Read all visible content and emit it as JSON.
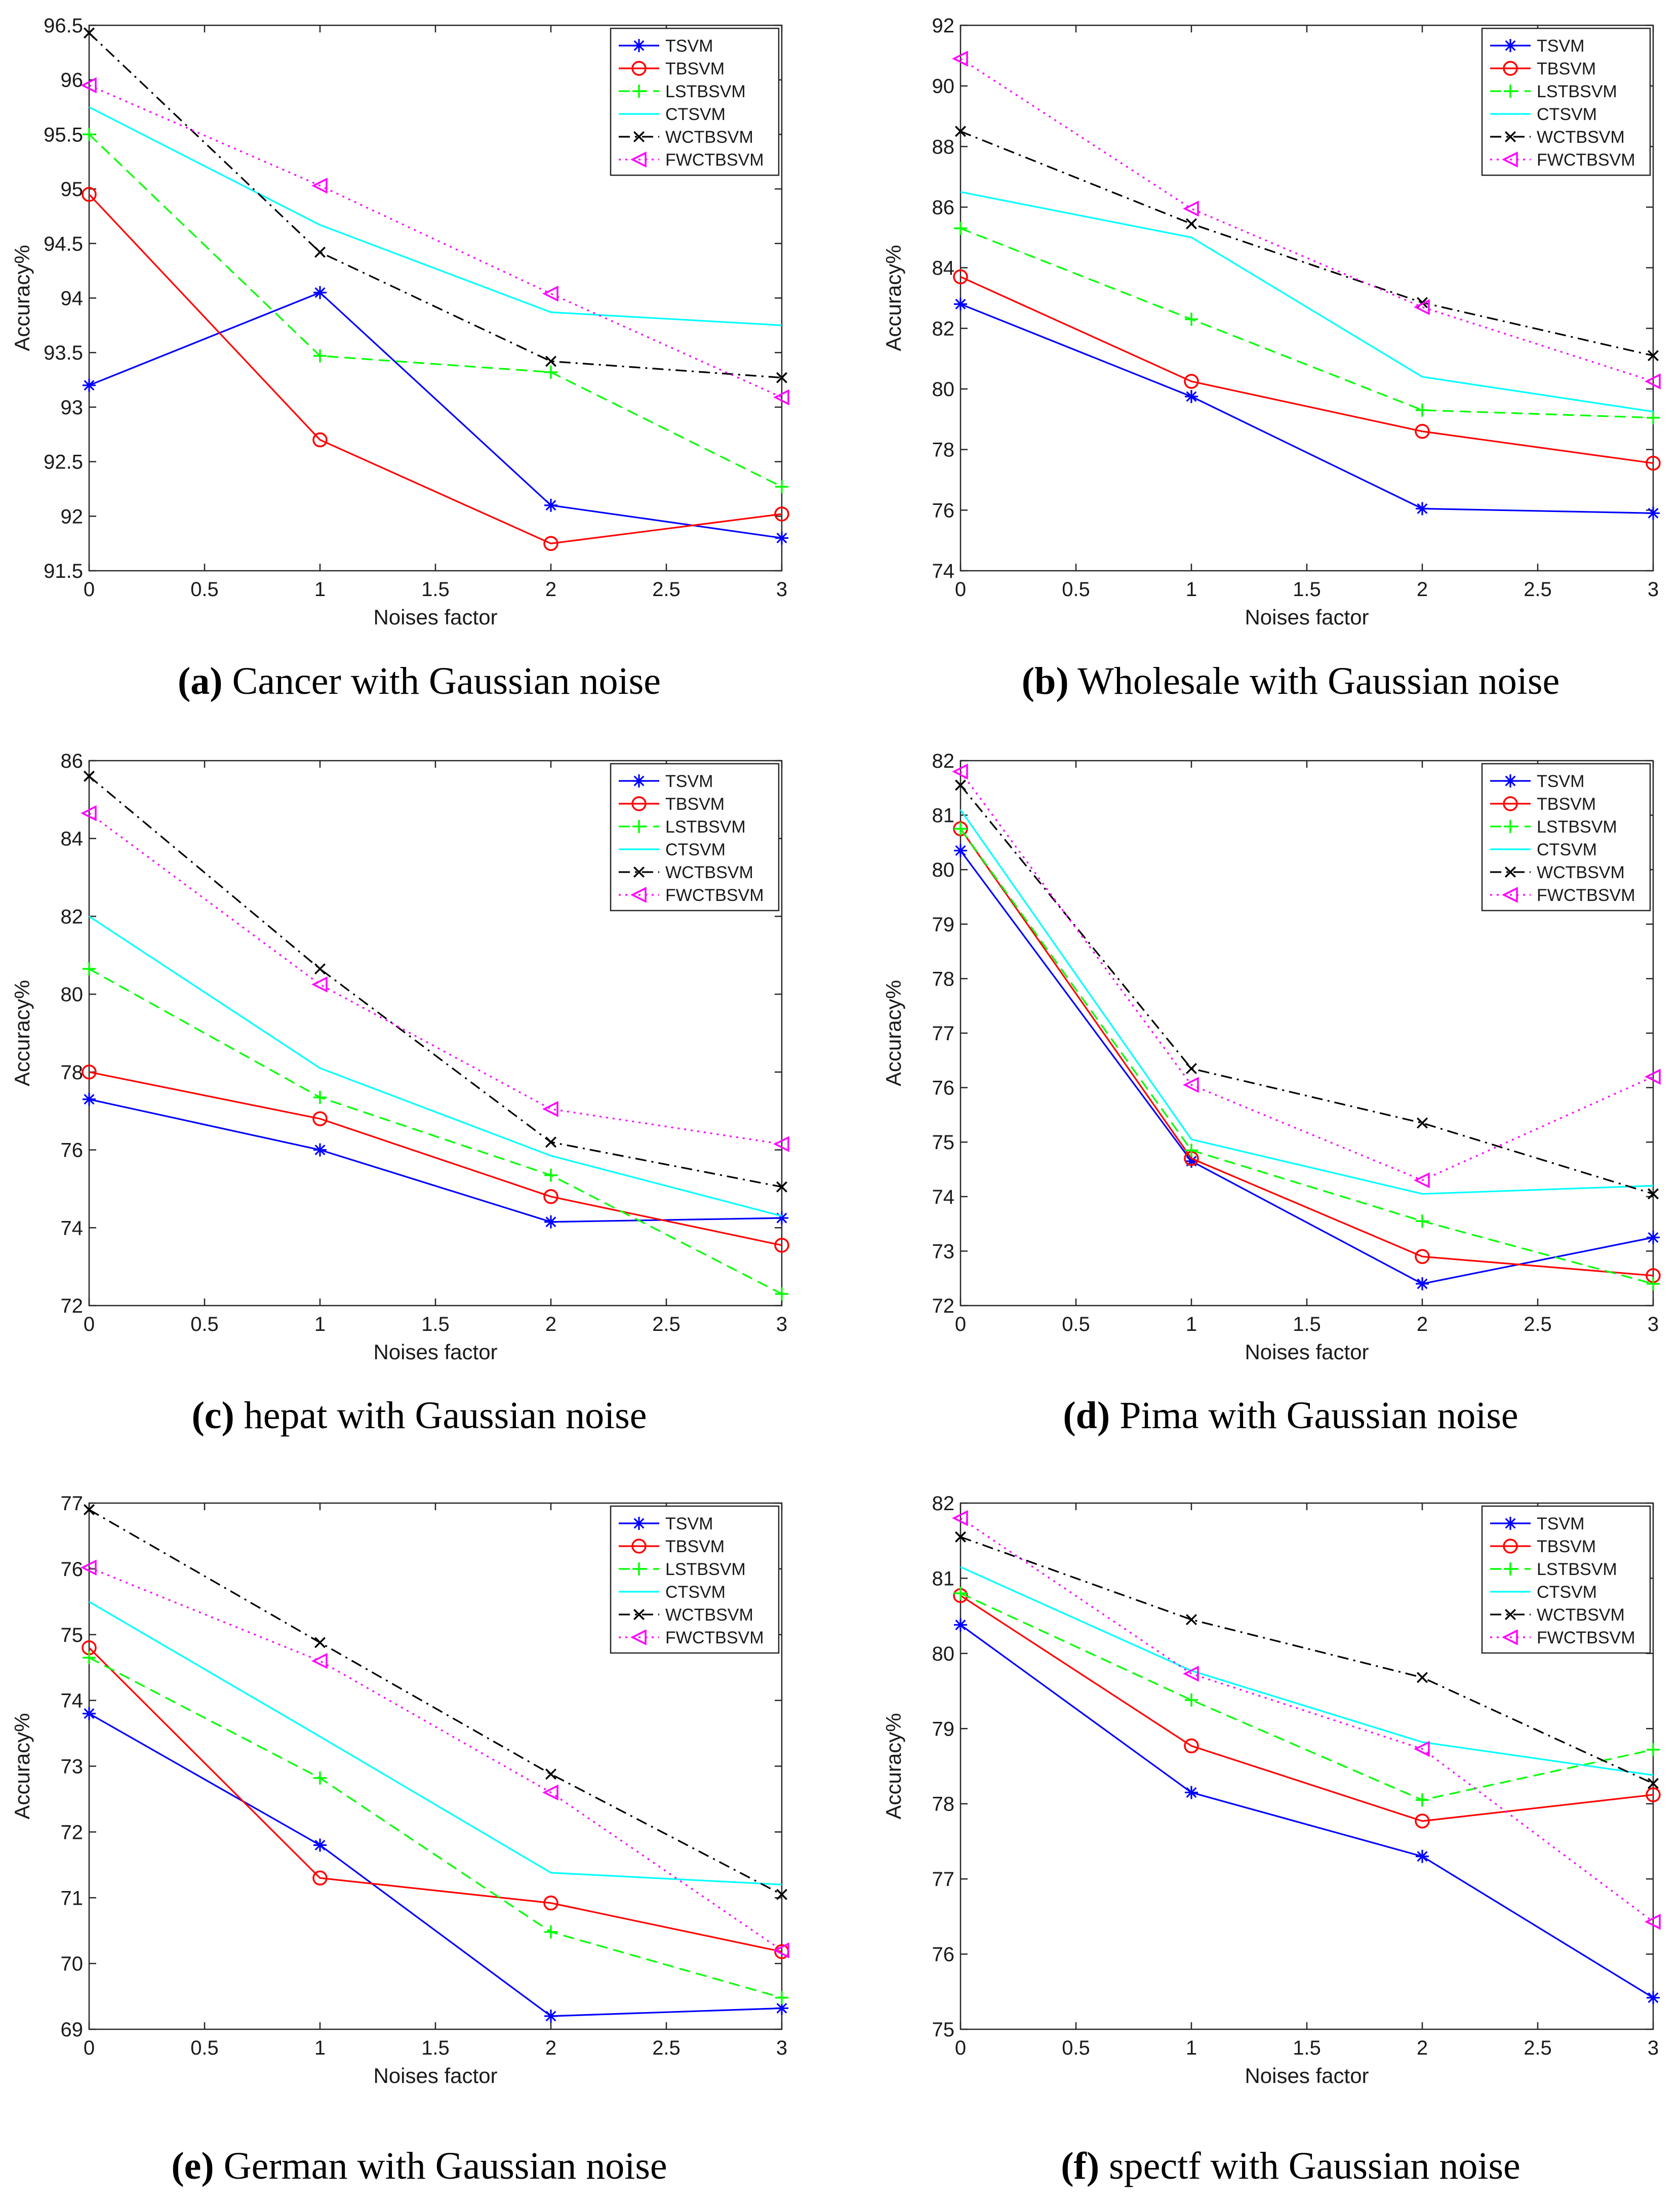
{
  "legend_labels": [
    "TSVM",
    "TBSVM",
    "LSTBSVM",
    "CTSVM",
    "WCTBSVM",
    "FWCTBSVM"
  ],
  "series_styles": [
    {
      "name": "TSVM",
      "color": "#0000ff",
      "dash": "solid",
      "marker": "asterisk"
    },
    {
      "name": "TBSVM",
      "color": "#ff0000",
      "dash": "solid",
      "marker": "circle"
    },
    {
      "name": "LSTBSVM",
      "color": "#00ff00",
      "dash": "dashed",
      "marker": "plus"
    },
    {
      "name": "CTSVM",
      "color": "#00ffff",
      "dash": "solid",
      "marker": "none"
    },
    {
      "name": "WCTBSVM",
      "color": "#000000",
      "dash": "dashdot",
      "marker": "x"
    },
    {
      "name": "FWCTBSVM",
      "color": "#ff00ff",
      "dash": "dotted",
      "marker": "triangle-left"
    }
  ],
  "chart_data": [
    {
      "type": "line",
      "caption_letter": "(a)",
      "caption_text": " Cancer with Gaussian noise",
      "xlabel": "Noises factor",
      "ylabel": "Accuracy%",
      "x": [
        0,
        1,
        2,
        3
      ],
      "xlim": [
        0,
        3
      ],
      "ylim": [
        91.5,
        96.5
      ],
      "xticks": [
        "0",
        "0.5",
        "1",
        "1.5",
        "2",
        "2.5",
        "3"
      ],
      "yticks": [
        "91.5",
        "92",
        "92.5",
        "93",
        "93.5",
        "94",
        "94.5",
        "95",
        "95.5",
        "96",
        "96.5"
      ],
      "legend_position": "top-right",
      "series": [
        {
          "name": "TSVM",
          "values": [
            93.2,
            94.05,
            92.1,
            91.8
          ]
        },
        {
          "name": "TBSVM",
          "values": [
            94.95,
            92.7,
            91.75,
            92.02
          ]
        },
        {
          "name": "LSTBSVM",
          "values": [
            95.5,
            93.47,
            93.32,
            92.27
          ]
        },
        {
          "name": "CTSVM",
          "values": [
            95.75,
            94.67,
            93.87,
            93.75
          ]
        },
        {
          "name": "WCTBSVM",
          "values": [
            96.43,
            94.42,
            93.42,
            93.27
          ]
        },
        {
          "name": "FWCTBSVM",
          "values": [
            95.95,
            95.03,
            94.04,
            93.09
          ]
        }
      ]
    },
    {
      "type": "line",
      "caption_letter": "(b)",
      "caption_text": " Wholesale with Gaussian noise",
      "xlabel": "Noises factor",
      "ylabel": "Accuracy%",
      "x": [
        0,
        1,
        2,
        3
      ],
      "xlim": [
        0,
        3
      ],
      "ylim": [
        74,
        92
      ],
      "xticks": [
        "0",
        "0.5",
        "1",
        "1.5",
        "2",
        "2.5",
        "3"
      ],
      "yticks": [
        "74",
        "76",
        "78",
        "80",
        "82",
        "84",
        "86",
        "88",
        "90",
        "92"
      ],
      "legend_position": "top-right",
      "series": [
        {
          "name": "TSVM",
          "values": [
            82.8,
            79.75,
            76.05,
            75.9
          ]
        },
        {
          "name": "TBSVM",
          "values": [
            83.7,
            80.25,
            78.6,
            77.55
          ]
        },
        {
          "name": "LSTBSVM",
          "values": [
            85.3,
            82.3,
            79.3,
            79.05
          ]
        },
        {
          "name": "CTSVM",
          "values": [
            86.5,
            85.0,
            80.4,
            79.25
          ]
        },
        {
          "name": "WCTBSVM",
          "values": [
            88.5,
            85.45,
            82.85,
            81.1
          ]
        },
        {
          "name": "FWCTBSVM",
          "values": [
            90.9,
            85.95,
            82.7,
            80.25
          ]
        }
      ]
    },
    {
      "type": "line",
      "caption_letter": "(c)",
      "caption_text": " hepat with Gaussian noise",
      "xlabel": "Noises factor",
      "ylabel": "Accuracy%",
      "x": [
        0,
        1,
        2,
        3
      ],
      "xlim": [
        0,
        3
      ],
      "ylim": [
        72,
        86
      ],
      "xticks": [
        "0",
        "0.5",
        "1",
        "1.5",
        "2",
        "2.5",
        "3"
      ],
      "yticks": [
        "72",
        "74",
        "76",
        "78",
        "80",
        "82",
        "84",
        "86"
      ],
      "legend_position": "top-right",
      "series": [
        {
          "name": "TSVM",
          "values": [
            77.3,
            76.0,
            74.15,
            74.25
          ]
        },
        {
          "name": "TBSVM",
          "values": [
            78.0,
            76.8,
            74.8,
            73.55
          ]
        },
        {
          "name": "LSTBSVM",
          "values": [
            80.65,
            77.35,
            75.35,
            72.3
          ]
        },
        {
          "name": "CTSVM",
          "values": [
            82.0,
            78.1,
            75.85,
            74.3
          ]
        },
        {
          "name": "WCTBSVM",
          "values": [
            85.6,
            80.65,
            76.2,
            75.05
          ]
        },
        {
          "name": "FWCTBSVM",
          "values": [
            84.65,
            80.25,
            77.05,
            76.15
          ]
        }
      ]
    },
    {
      "type": "line",
      "caption_letter": "(d)",
      "caption_text": " Pima with Gaussian noise",
      "xlabel": "Noises factor",
      "ylabel": "Accuracy%",
      "x": [
        0,
        1,
        2,
        3
      ],
      "xlim": [
        0,
        3
      ],
      "ylim": [
        72,
        82
      ],
      "xticks": [
        "0",
        "0.5",
        "1",
        "1.5",
        "2",
        "2.5",
        "3"
      ],
      "yticks": [
        "72",
        "73",
        "74",
        "75",
        "76",
        "77",
        "78",
        "79",
        "80",
        "81",
        "82"
      ],
      "legend_position": "top-right",
      "series": [
        {
          "name": "TSVM",
          "values": [
            80.35,
            74.65,
            72.4,
            73.25
          ]
        },
        {
          "name": "TBSVM",
          "values": [
            80.75,
            74.7,
            72.9,
            72.55
          ]
        },
        {
          "name": "LSTBSVM",
          "values": [
            80.75,
            74.85,
            73.55,
            72.4
          ]
        },
        {
          "name": "CTSVM",
          "values": [
            81.1,
            75.05,
            74.05,
            74.2
          ]
        },
        {
          "name": "WCTBSVM",
          "values": [
            81.55,
            76.35,
            75.35,
            74.05
          ]
        },
        {
          "name": "FWCTBSVM",
          "values": [
            81.8,
            76.05,
            74.3,
            76.2
          ]
        }
      ]
    },
    {
      "type": "line",
      "caption_letter": "(e)",
      "caption_text": " German with Gaussian noise",
      "xlabel": "Noises factor",
      "ylabel": "Accuracy%",
      "x": [
        0,
        1,
        2,
        3
      ],
      "xlim": [
        0,
        3
      ],
      "ylim": [
        69,
        77
      ],
      "xticks": [
        "0",
        "0.5",
        "1",
        "1.5",
        "2",
        "2.5",
        "3"
      ],
      "yticks": [
        "69",
        "70",
        "71",
        "72",
        "73",
        "74",
        "75",
        "76",
        "77"
      ],
      "legend_position": "top-right",
      "series": [
        {
          "name": "TSVM",
          "values": [
            73.8,
            71.8,
            69.2,
            69.32
          ]
        },
        {
          "name": "TBSVM",
          "values": [
            74.8,
            71.3,
            70.92,
            70.18
          ]
        },
        {
          "name": "LSTBSVM",
          "values": [
            74.65,
            72.82,
            70.48,
            69.48
          ]
        },
        {
          "name": "CTSVM",
          "values": [
            75.5,
            73.45,
            71.38,
            71.2
          ]
        },
        {
          "name": "WCTBSVM",
          "values": [
            76.9,
            74.88,
            72.88,
            71.05
          ]
        },
        {
          "name": "FWCTBSVM",
          "values": [
            76.02,
            74.6,
            72.6,
            70.2
          ]
        }
      ]
    },
    {
      "type": "line",
      "caption_letter": "(f)",
      "caption_text": " spectf with Gaussian noise",
      "xlabel": "Noises factor",
      "ylabel": "Accuracy%",
      "x": [
        0,
        1,
        2,
        3
      ],
      "xlim": [
        0,
        3
      ],
      "ylim": [
        75,
        82
      ],
      "xticks": [
        "0",
        "0.5",
        "1",
        "1.5",
        "2",
        "2.5",
        "3"
      ],
      "yticks": [
        "75",
        "76",
        "77",
        "78",
        "79",
        "80",
        "81",
        "82"
      ],
      "legend_position": "top-right",
      "series": [
        {
          "name": "TSVM",
          "values": [
            80.38,
            78.15,
            77.3,
            75.42
          ]
        },
        {
          "name": "TBSVM",
          "values": [
            80.77,
            78.77,
            77.77,
            78.12
          ]
        },
        {
          "name": "LSTBSVM",
          "values": [
            80.8,
            79.38,
            78.05,
            78.72
          ]
        },
        {
          "name": "CTSVM",
          "values": [
            81.15,
            79.77,
            78.82,
            78.38
          ]
        },
        {
          "name": "WCTBSVM",
          "values": [
            81.55,
            80.45,
            79.68,
            78.27
          ]
        },
        {
          "name": "FWCTBSVM",
          "values": [
            81.8,
            79.73,
            78.73,
            76.43
          ]
        }
      ]
    }
  ]
}
